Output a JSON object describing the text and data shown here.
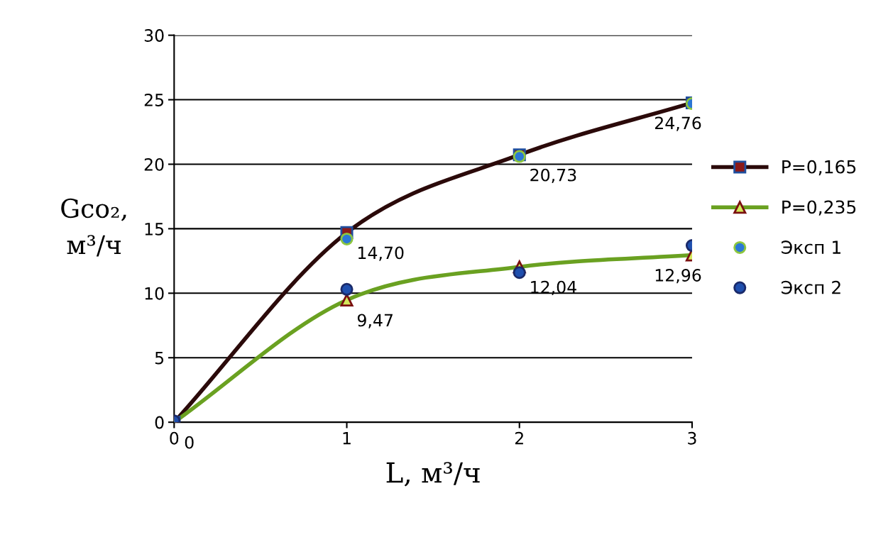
{
  "chart_data": {
    "type": "line",
    "xlabel": "L, м³/ч",
    "ylabel": "Gco₂,\nм³/ч",
    "x": [
      0,
      1,
      2,
      3
    ],
    "xlim": [
      0,
      3
    ],
    "xticks": [
      0,
      1,
      2,
      3
    ],
    "ylim": [
      0,
      30
    ],
    "yticks": [
      0,
      5,
      10,
      15,
      20,
      25,
      30
    ],
    "grid": "y",
    "legend": "right",
    "series": [
      {
        "name": "P=0,165",
        "marker": "square",
        "color": "#2b0a0a",
        "values": [
          0,
          14.7,
          20.73,
          24.76
        ],
        "value_labels": [
          "0",
          "14,70",
          "20,73",
          "24,76"
        ]
      },
      {
        "name": "P=0,235",
        "marker": "triangle",
        "color": "#6aa121",
        "values": [
          0,
          9.47,
          12.04,
          12.96
        ],
        "value_labels": [
          null,
          "9,47",
          "12,04",
          "12,96"
        ]
      },
      {
        "name": "Эксп 1",
        "type": "scatter",
        "marker": "circle",
        "color": "#2a78d6",
        "values": [
          null,
          14.2,
          20.6,
          24.7
        ]
      },
      {
        "name": "Эксп 2",
        "type": "scatter",
        "marker": "circle",
        "color": "#1f4fae",
        "values": [
          0.1,
          10.3,
          11.6,
          13.7
        ]
      }
    ]
  }
}
